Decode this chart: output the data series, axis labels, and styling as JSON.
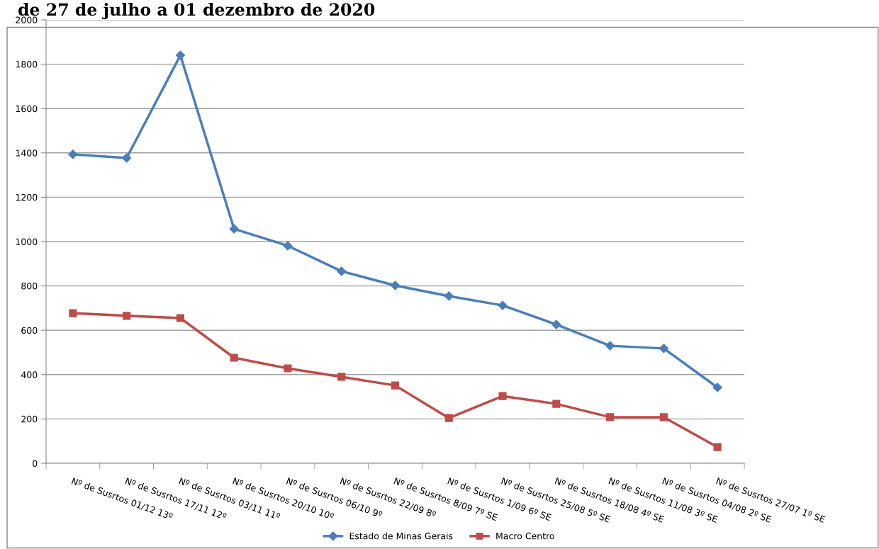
{
  "chart_data": {
    "type": "line",
    "title": "de 27 de julho a 01 dezembro de 2020",
    "categories": [
      "Nº de Susrtos 01/12 13º",
      "Nº de Susrtos 17/11 12º",
      "Nº de Susrtos 03/11 11º",
      "Nº de Susrtos 20/10 10º",
      "Nº de Susrtos 06/10 9º",
      "Nº de Susrtos 22/09 8º",
      "Nº de Susrtos 8/09 7º SE",
      "Nº de Susrtos 1/09 6º SE",
      "Nº de Susrtos 25/08 5º SE",
      "Nº de Susrtos 18/08 4º SE",
      "Nº de Susrtos 11/08 3º SE",
      "Nº de Susrtos 04/08 2º SE",
      "Nº de Susrtos 27/07 1º SE"
    ],
    "series": [
      {
        "name": "Estado de Minas Gerais",
        "color": "#4a7ebb",
        "marker": "diamond",
        "values": [
          1393,
          1377,
          1840,
          1057,
          981,
          866,
          802,
          754,
          712,
          626,
          530,
          518,
          342
        ]
      },
      {
        "name": "Macro Centro",
        "color": "#be4b48",
        "marker": "square",
        "values": [
          677,
          665,
          655,
          476,
          428,
          390,
          351,
          204,
          303,
          268,
          208,
          208,
          73
        ]
      }
    ],
    "ylim": [
      0,
      2000
    ],
    "yticks": [
      0,
      200,
      400,
      600,
      800,
      1000,
      1200,
      1400,
      1600,
      1800,
      2000
    ],
    "grid": "y",
    "legend": "bottom",
    "line_style": "solid"
  }
}
